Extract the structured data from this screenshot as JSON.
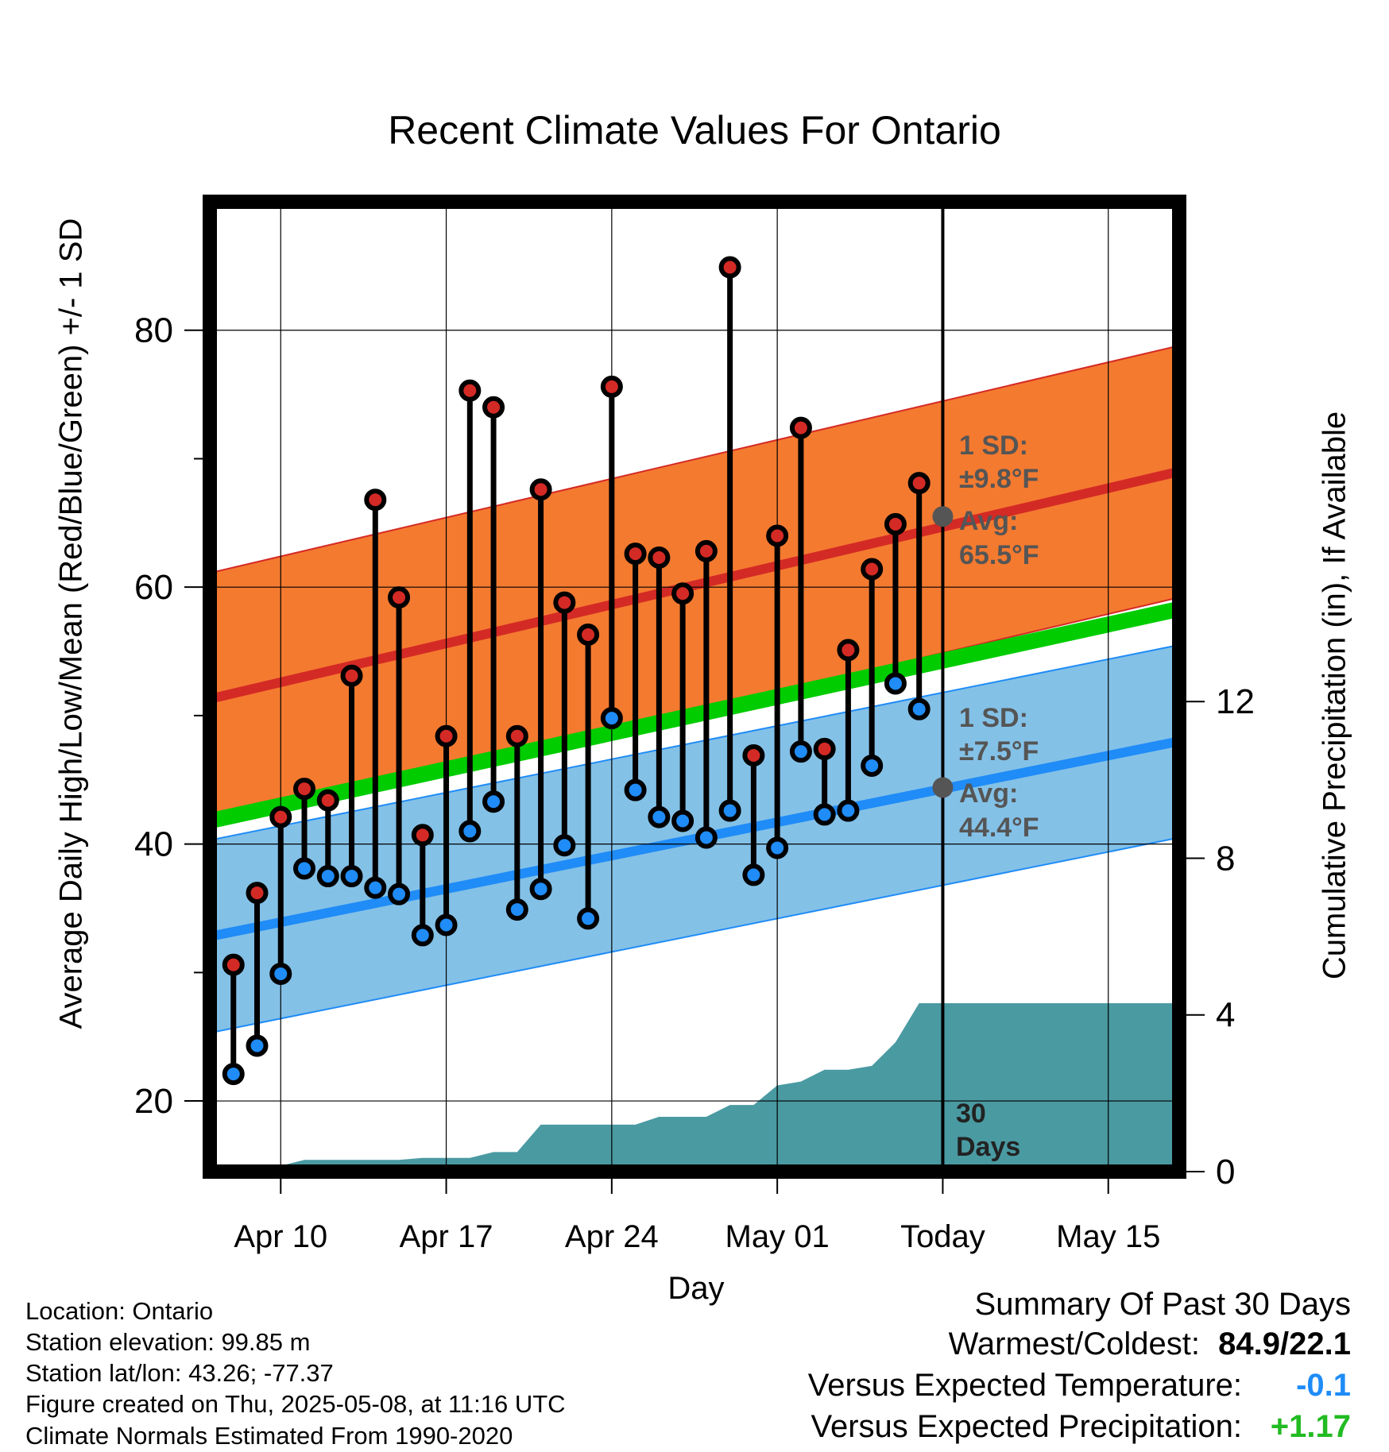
{
  "chart_data": {
    "type": "line",
    "title": "Recent Climate Values For Ontario",
    "xlabel": "Day",
    "ylabel_left": "Average Daily High/Low/Mean (Red/Blue/Green) +/- 1 SD",
    "ylabel_right": "Cumulative Precipitation (in), If Available",
    "ylim_left": [
      14.5,
      90
    ],
    "ylim_right": [
      0,
      24.76
    ],
    "x_ticks": [
      {
        "day": 10,
        "label": "Apr 10"
      },
      {
        "day": 17,
        "label": "Apr 17"
      },
      {
        "day": 24,
        "label": "Apr 24"
      },
      {
        "day": 31,
        "label": "May 01"
      },
      {
        "day": 38,
        "label": "Today"
      },
      {
        "day": 45,
        "label": "May 15"
      }
    ],
    "y_ticks_left": [
      20,
      40,
      60,
      80
    ],
    "y_minor_ticks_left": [
      30,
      50,
      70
    ],
    "y_ticks_right": [
      0,
      4,
      8,
      12
    ],
    "x_range_days": [
      7,
      48
    ],
    "grid": true,
    "daily_dates": [
      "Apr 08",
      "Apr 09",
      "Apr 10",
      "Apr 11",
      "Apr 12",
      "Apr 13",
      "Apr 14",
      "Apr 15",
      "Apr 16",
      "Apr 17",
      "Apr 18",
      "Apr 19",
      "Apr 20",
      "Apr 21",
      "Apr 22",
      "Apr 23",
      "Apr 24",
      "Apr 25",
      "Apr 26",
      "Apr 27",
      "Apr 28",
      "Apr 29",
      "Apr 30",
      "May 01",
      "May 02",
      "May 03",
      "May 04",
      "May 05",
      "May 06",
      "May 07"
    ],
    "daily_high": [
      30.6,
      36.2,
      42.1,
      44.3,
      43.4,
      53.1,
      66.8,
      59.2,
      40.7,
      48.4,
      75.3,
      74.0,
      48.4,
      67.6,
      58.8,
      56.3,
      75.6,
      62.6,
      62.3,
      59.5,
      62.8,
      84.9,
      46.9,
      64.0,
      72.4,
      47.4,
      55.1,
      61.4,
      64.9,
      68.1
    ],
    "daily_low": [
      22.1,
      24.3,
      29.9,
      38.1,
      37.5,
      37.5,
      36.6,
      36.1,
      32.9,
      33.7,
      41.0,
      43.3,
      34.9,
      36.5,
      39.9,
      34.2,
      49.8,
      44.2,
      42.1,
      41.8,
      40.5,
      42.6,
      37.6,
      39.7,
      47.2,
      42.3,
      42.6,
      46.1,
      52.5,
      50.5
    ],
    "normal_high_avg": {
      "start": 51.3,
      "end": 69.0,
      "today": 65.5
    },
    "normal_high_sd": 9.8,
    "normal_low_avg": {
      "start": 32.8,
      "end": 48.0,
      "today": 44.4
    },
    "normal_low_sd": 7.5,
    "normal_mean": {
      "start": 41.8,
      "end": 58.3
    },
    "precip_cumulative": [
      0,
      0,
      0.15,
      0.3,
      0.3,
      0.3,
      0.3,
      0.3,
      0.35,
      0.35,
      0.35,
      0.5,
      0.5,
      1.2,
      1.2,
      1.2,
      1.2,
      1.2,
      1.4,
      1.4,
      1.4,
      1.7,
      1.7,
      2.2,
      2.3,
      2.6,
      2.6,
      2.7,
      3.3,
      4.3
    ],
    "precip_final": 4.3,
    "annotations": {
      "high_sd_label1": "1 SD:",
      "high_sd_label2": "±9.8°F",
      "high_avg_label1": "Avg:",
      "high_avg_label2": "65.5°F",
      "low_sd_label1": "1 SD:",
      "low_sd_label2": "±7.5°F",
      "low_avg_label1": "Avg:",
      "low_avg_label2": "44.4°F",
      "days_label1": "30",
      "days_label2": "Days"
    },
    "colors": {
      "high_band": "#f47a30",
      "high_line": "#d42a25",
      "low_band": "#84c1e7",
      "low_line": "#1f8cf7",
      "mean_line": "#00cc00",
      "precip": "#4a9aa2",
      "high_point": "#d42a25",
      "low_point": "#1f8cf7",
      "annotation": "#555555"
    }
  },
  "footer": {
    "location": "Location: Ontario",
    "elevation": "Station elevation: 99.85 m",
    "latlon": "Station lat/lon: 43.26; -77.37",
    "created": "Figure created on Thu, 2025-05-08, at 11:16 UTC",
    "normals": "Climate Normals Estimated From 1990-2020"
  },
  "summary": {
    "heading": "Summary Of Past 30 Days",
    "warmest_label": "Warmest/Coldest:",
    "warmest_value": "84.9/22.1",
    "temp_label": "Versus Expected Temperature:",
    "temp_value": "-0.1",
    "temp_color": "#1f8cf7",
    "precip_label": "Versus Expected Precipitation:",
    "precip_value": "+1.17",
    "precip_color": "#22bb22"
  }
}
